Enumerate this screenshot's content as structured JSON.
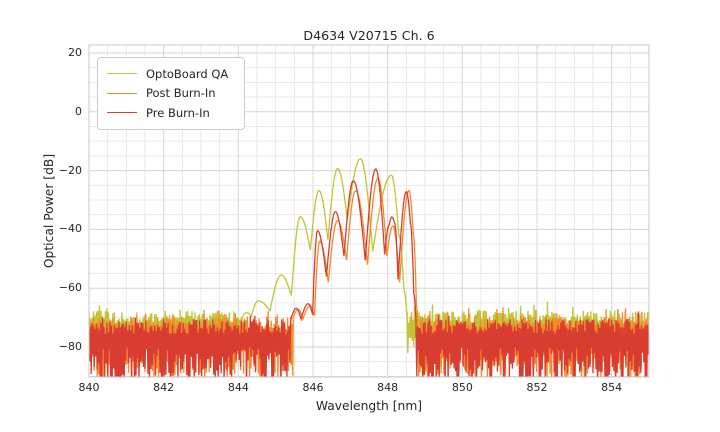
{
  "chart_data": {
    "type": "line",
    "title": "D4634 V20715 Ch. 6",
    "xlabel": "Wavelength [nm]",
    "ylabel": "Optical Power [dB]",
    "xlim": [
      840,
      855
    ],
    "ylim": [
      -90.2,
      22.7
    ],
    "xticks": [
      [
        840,
        "840"
      ],
      [
        842,
        "842"
      ],
      [
        844,
        "844"
      ],
      [
        846,
        "846"
      ],
      [
        848,
        "848"
      ],
      [
        850,
        "850"
      ],
      [
        852,
        "852"
      ],
      [
        854,
        "854"
      ]
    ],
    "yticks": [
      [
        20,
        "20"
      ],
      [
        0,
        "0"
      ],
      [
        -20,
        "−20"
      ],
      [
        -40,
        "−40"
      ],
      [
        -60,
        "−60"
      ],
      [
        -80,
        "−80"
      ]
    ],
    "grid": {
      "on": true,
      "minor_step_x": 0.5,
      "minor_step_y": 5,
      "major_step_x": 2,
      "major_step_y": 20,
      "minor_color": "#e4e4e4",
      "major_color": "#d6d6d6",
      "frame_color": "#c9c9c9"
    },
    "legend": {
      "position": "upper left"
    },
    "series": [
      {
        "name": "OptoBoard QA",
        "color": "#c0c534",
        "linewidth": 1.3,
        "noise": {
          "top": -67.5,
          "top_var": 4.5,
          "deep": -75,
          "deep_var": 9,
          "seed": 101
        },
        "segments": [
          {
            "type": "noise",
            "range": [
              840,
              844.1
            ]
          },
          {
            "type": "curve",
            "points": [
              [
                844.1,
                -70
              ],
              [
                844.22,
                -68.3
              ],
              [
                844.35,
                -69.6
              ],
              [
                844.53,
                -64.3
              ],
              [
                844.85,
                -67.6
              ],
              [
                845.15,
                -55.5
              ],
              [
                845.42,
                -62.5
              ],
              [
                845.66,
                -35.7
              ],
              [
                845.93,
                -47.0
              ],
              [
                846.16,
                -26.8
              ],
              [
                846.4,
                -43.5
              ],
              [
                846.66,
                -19.3
              ],
              [
                846.92,
                -37.0
              ],
              [
                847.27,
                -16.0
              ],
              [
                847.6,
                -47.5
              ],
              [
                848.1,
                -21.6
              ],
              [
                848.3,
                -42.0
              ],
              [
                848.44,
                -61.0
              ],
              [
                848.52,
                -70.0
              ]
            ]
          },
          {
            "type": "noise",
            "range": [
              848.52,
              855
            ]
          }
        ]
      },
      {
        "name": "Post Burn-In",
        "color": "#f5892c",
        "linewidth": 1.3,
        "noise": {
          "top": -69.5,
          "top_var": 4.5,
          "deep": -80,
          "deep_var": 12,
          "seed": 202
        },
        "segments": [
          {
            "type": "noise",
            "range": [
              840,
              845.47
            ]
          },
          {
            "type": "curve",
            "points": [
              [
                845.47,
                -70
              ],
              [
                845.6,
                -67.2
              ],
              [
                845.73,
                -70.5
              ],
              [
                845.92,
                -66.0
              ],
              [
                846.04,
                -69.5
              ],
              [
                846.18,
                -44.0
              ],
              [
                846.41,
                -58.0
              ],
              [
                846.66,
                -37.0
              ],
              [
                846.9,
                -50.5
              ],
              [
                847.14,
                -26.9
              ],
              [
                847.46,
                -52.0
              ],
              [
                847.74,
                -22.6
              ],
              [
                847.98,
                -49.0
              ],
              [
                848.14,
                -38.8
              ],
              [
                848.32,
                -58.0
              ],
              [
                848.57,
                -26.8
              ],
              [
                848.69,
                -42.0
              ],
              [
                848.77,
                -66.0
              ],
              [
                848.81,
                -72.0
              ]
            ]
          },
          {
            "type": "noise",
            "range": [
              848.81,
              855
            ]
          }
        ]
      },
      {
        "name": "Pre Burn-In",
        "color": "#d93d31",
        "linewidth": 1.3,
        "noise": {
          "top": -70.5,
          "top_var": 5,
          "deep": -80,
          "deep_var": 14,
          "seed": 303
        },
        "segments": [
          {
            "type": "noise",
            "range": [
              840,
              845.42
            ]
          },
          {
            "type": "curve",
            "points": [
              [
                845.42,
                -70
              ],
              [
                845.55,
                -66.8
              ],
              [
                845.68,
                -70.5
              ],
              [
                845.87,
                -65.3
              ],
              [
                845.99,
                -69.0
              ],
              [
                846.12,
                -40.5
              ],
              [
                846.36,
                -56.0
              ],
              [
                846.6,
                -34.0
              ],
              [
                846.83,
                -49.0
              ],
              [
                847.08,
                -23.5
              ],
              [
                847.4,
                -50.5
              ],
              [
                847.68,
                -19.5
              ],
              [
                847.92,
                -48.5
              ],
              [
                848.04,
                -38.5
              ],
              [
                848.11,
                -35.8
              ],
              [
                848.18,
                -37.5
              ],
              [
                848.28,
                -57.0
              ],
              [
                848.5,
                -27.2
              ],
              [
                848.61,
                -38.0
              ],
              [
                848.7,
                -62.0
              ],
              [
                848.76,
                -71.0
              ]
            ]
          },
          {
            "type": "noise",
            "range": [
              848.76,
              855
            ]
          }
        ]
      }
    ]
  }
}
